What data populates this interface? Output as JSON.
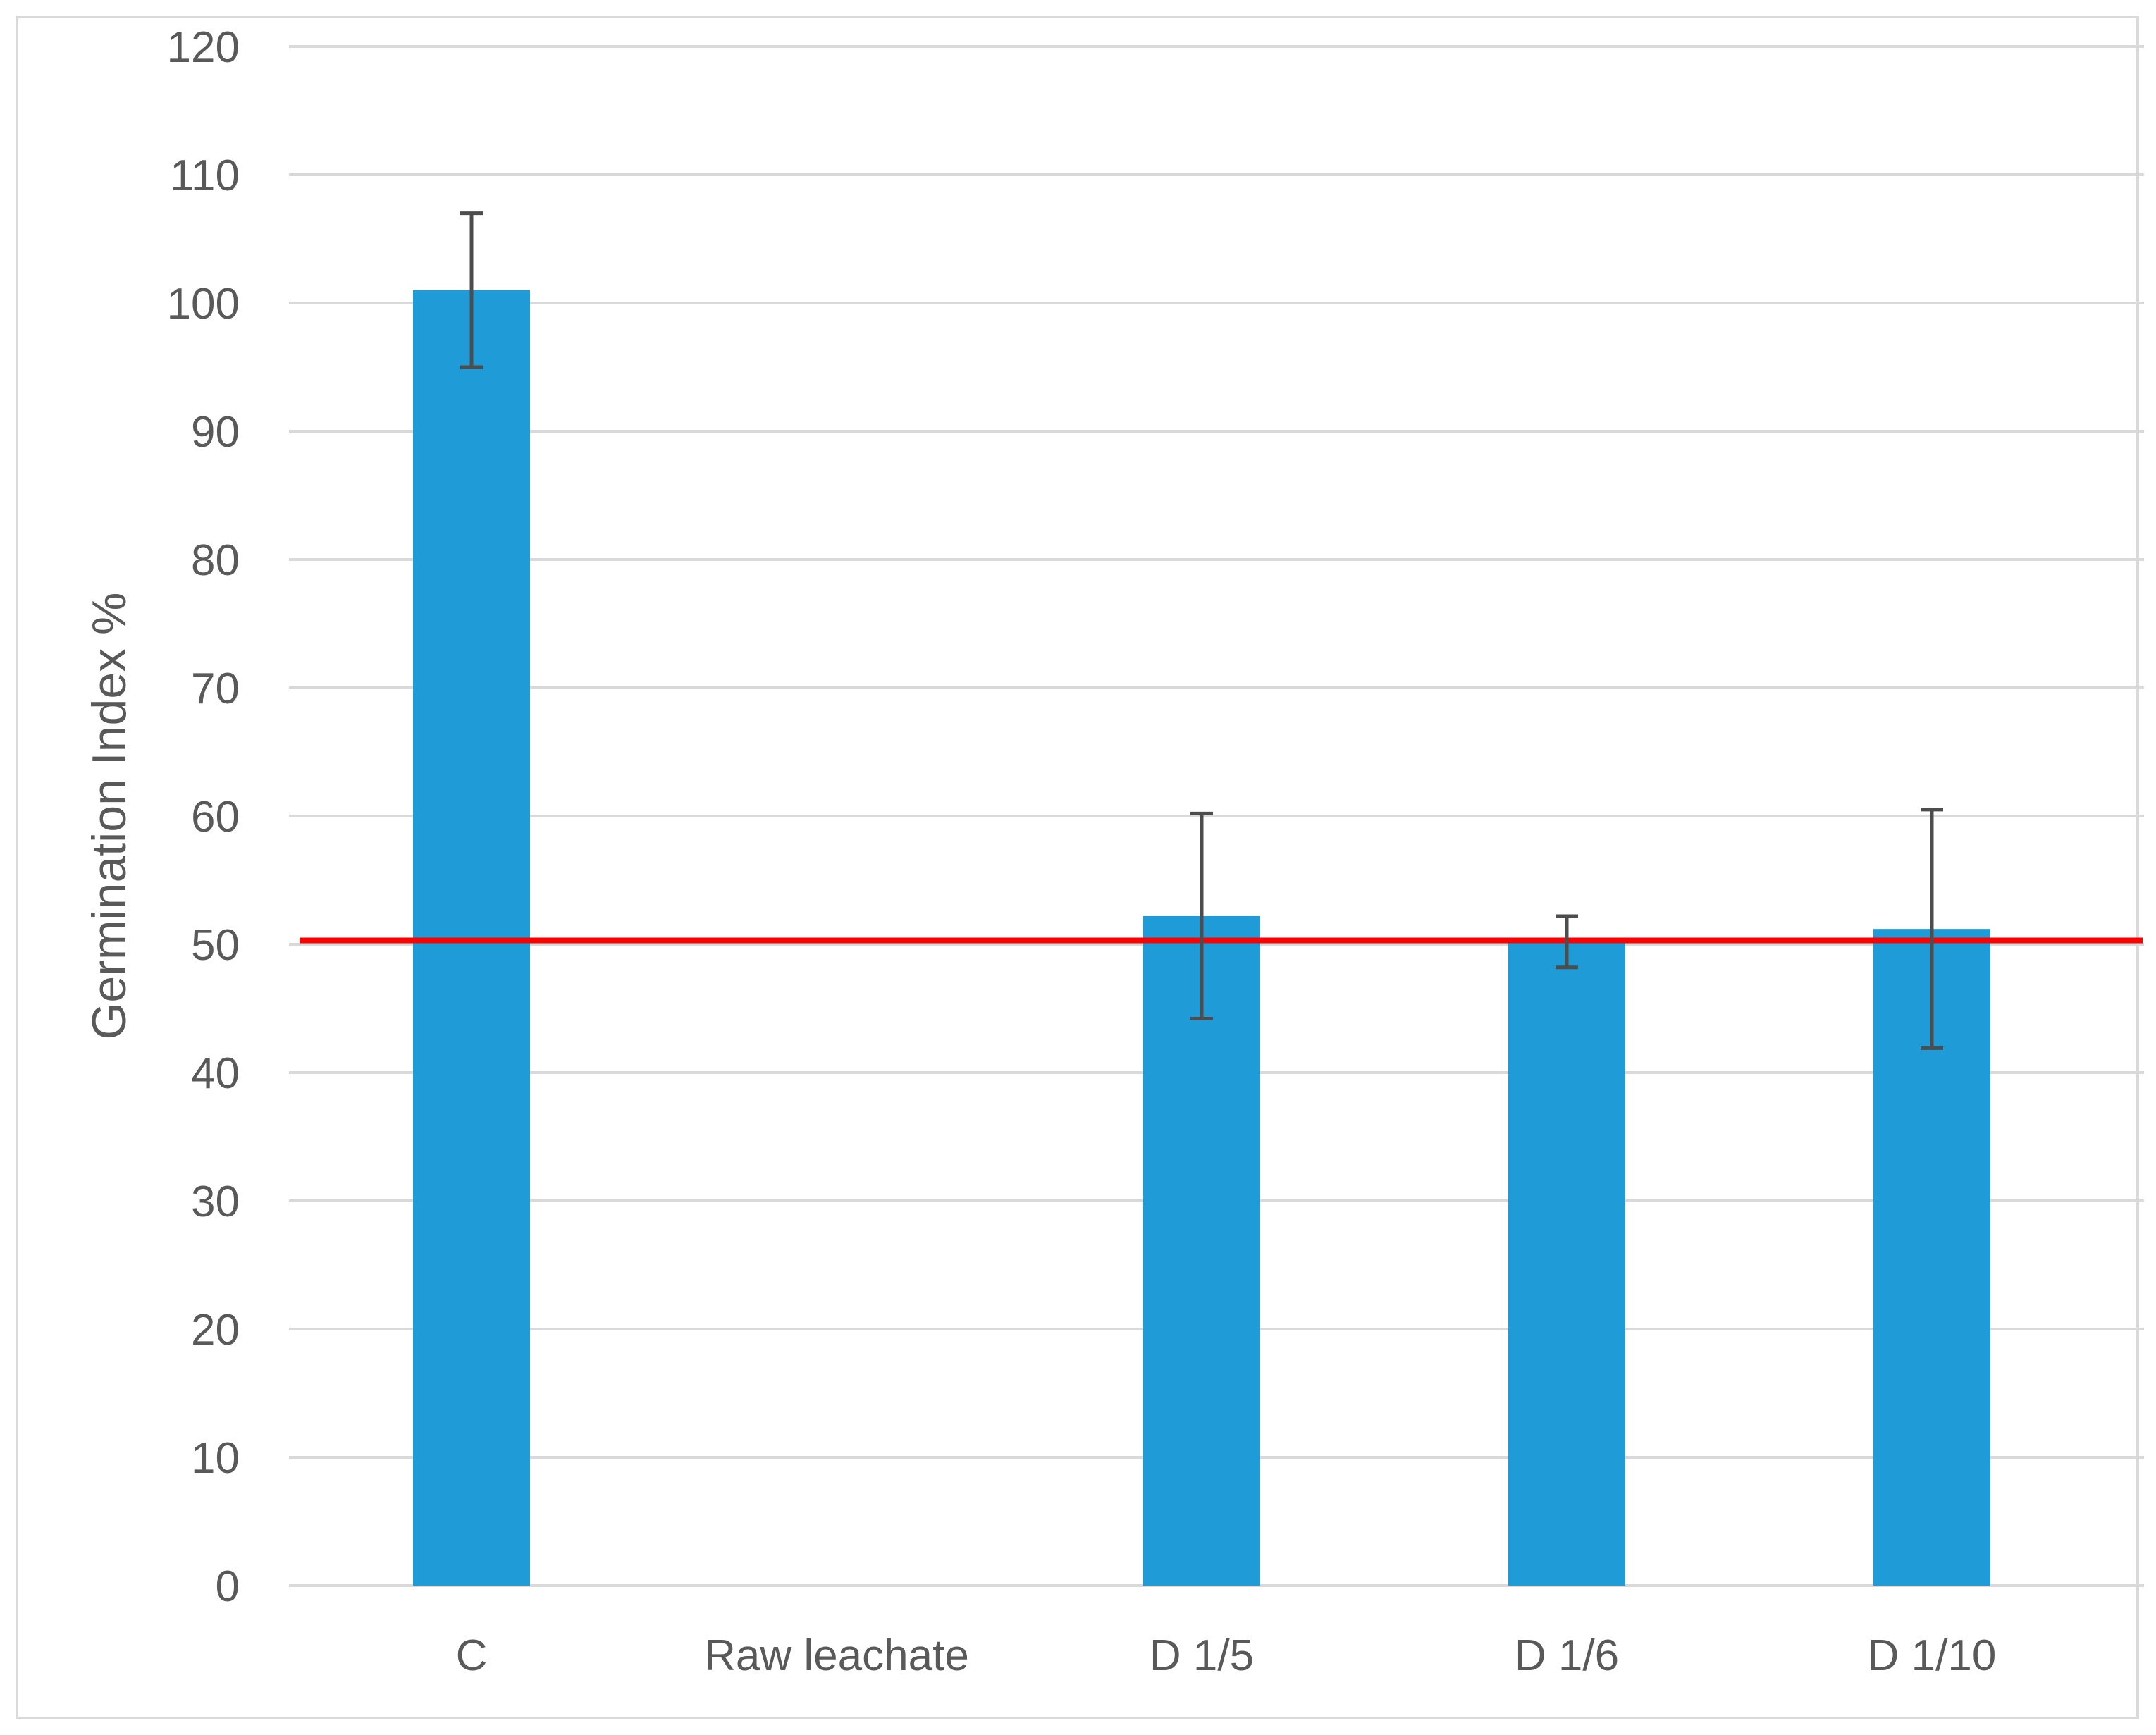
{
  "chart_data": {
    "type": "bar",
    "title": "",
    "xlabel": "",
    "ylabel": "Germination Index %",
    "categories": [
      "C",
      "Raw leachate",
      "D 1/5",
      "D 1/6",
      "D 1/10"
    ],
    "series": [
      {
        "values": [
          101,
          0,
          52.2,
          50.2,
          51.2
        ],
        "error": [
          6,
          0,
          8,
          2,
          9.3
        ],
        "color": "#1f9bd7"
      }
    ],
    "reference_line": {
      "value": 50.3,
      "color": "#ff0000"
    },
    "ylim": [
      0,
      120
    ],
    "yticks": [
      0,
      10,
      20,
      30,
      40,
      50,
      60,
      70,
      80,
      90,
      100,
      110,
      120
    ],
    "grid": true,
    "colors": {
      "grid": "#d9d9d9",
      "error_bar": "#4d4d4d",
      "text": "#595959",
      "border": "#d9d9d9"
    }
  }
}
